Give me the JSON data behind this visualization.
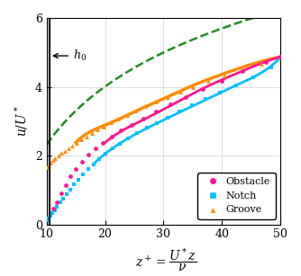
{
  "title": "",
  "ylabel": "$u/U^*$",
  "xlim": [
    10,
    50
  ],
  "ylim": [
    0,
    6
  ],
  "xticks": [
    10,
    20,
    30,
    40,
    50
  ],
  "yticks": [
    0,
    2,
    4,
    6
  ],
  "h0_x": 10.5,
  "log_law_kappa": 0.41,
  "log_law_B": -3.3,
  "vline_x": 10.5,
  "obstacle_color": "#FF1493",
  "notch_color": "#00BFFF",
  "groove_color": "#FF8C00",
  "dashed_color": "#228B22",
  "background_color": "#ffffff",
  "grid_color": "#d0d0d0",
  "notch_dense_x": [
    10.0,
    10.3,
    10.6,
    11.0,
    11.4,
    11.8,
    12.3,
    12.8,
    13.4,
    14.0,
    14.7,
    15.4,
    16.2,
    17.1,
    18.0,
    19.0,
    20.1,
    21.3,
    22.6,
    24.0,
    25.5,
    27.1,
    28.8,
    30.7,
    32.7,
    34.9,
    37.2,
    39.7,
    42.4,
    45.3,
    48.4,
    50.0
  ],
  "notch_dense_y": [
    0.12,
    0.18,
    0.25,
    0.33,
    0.42,
    0.52,
    0.63,
    0.75,
    0.88,
    1.02,
    1.16,
    1.3,
    1.45,
    1.6,
    1.75,
    1.9,
    2.05,
    2.2,
    2.35,
    2.5,
    2.65,
    2.8,
    2.95,
    3.1,
    3.28,
    3.46,
    3.64,
    3.84,
    4.05,
    4.28,
    4.55,
    4.85
  ],
  "groove_dense_x": [
    10.0,
    10.3,
    10.7,
    11.1,
    11.5,
    12.0,
    12.5,
    13.1,
    13.7,
    14.4,
    15.1,
    15.9,
    16.8,
    17.7,
    18.7,
    19.8,
    21.0,
    22.3,
    23.7,
    25.2,
    26.9,
    28.7,
    30.7,
    32.8,
    35.1,
    37.7,
    40.5,
    43.5,
    46.8,
    50.0
  ],
  "groove_dense_y": [
    1.65,
    1.72,
    1.79,
    1.86,
    1.93,
    2.0,
    2.07,
    2.14,
    2.22,
    2.3,
    2.38,
    2.47,
    2.56,
    2.65,
    2.75,
    2.85,
    2.96,
    3.07,
    3.19,
    3.31,
    3.44,
    3.57,
    3.71,
    3.85,
    4.0,
    4.16,
    4.33,
    4.5,
    4.68,
    4.87
  ],
  "obstacle_dense_x": [
    11.2,
    11.8,
    12.5,
    13.3,
    14.1,
    15.0,
    16.0,
    17.1,
    18.3,
    19.6,
    21.1,
    22.7,
    24.5,
    26.5,
    28.7,
    31.1,
    33.8,
    36.7,
    39.9,
    43.5,
    47.5,
    50.0
  ],
  "obstacle_dense_y": [
    0.45,
    0.65,
    0.9,
    1.15,
    1.4,
    1.62,
    1.83,
    2.02,
    2.2,
    2.38,
    2.56,
    2.73,
    2.9,
    3.08,
    3.27,
    3.48,
    3.7,
    3.93,
    4.18,
    4.45,
    4.73,
    4.87
  ],
  "notch_line_x": [
    18.0,
    20.0,
    22.5,
    25.5,
    29.0,
    33.0,
    37.5,
    42.5,
    48.0,
    50.0
  ],
  "notch_line_y": [
    1.75,
    2.05,
    2.35,
    2.65,
    2.95,
    3.28,
    3.64,
    4.05,
    4.55,
    4.85
  ],
  "groove_line_x": [
    15.0,
    17.0,
    19.5,
    22.5,
    26.0,
    30.0,
    34.5,
    39.5,
    45.0,
    50.0
  ],
  "groove_line_y": [
    2.38,
    2.65,
    2.85,
    3.07,
    3.35,
    3.65,
    4.0,
    4.33,
    4.65,
    4.87
  ],
  "obstacle_line_x": [
    20.0,
    23.0,
    27.0,
    31.5,
    36.5,
    42.0,
    47.5,
    50.0
  ],
  "obstacle_line_y": [
    2.38,
    2.73,
    3.08,
    3.48,
    3.93,
    4.35,
    4.73,
    4.87
  ]
}
